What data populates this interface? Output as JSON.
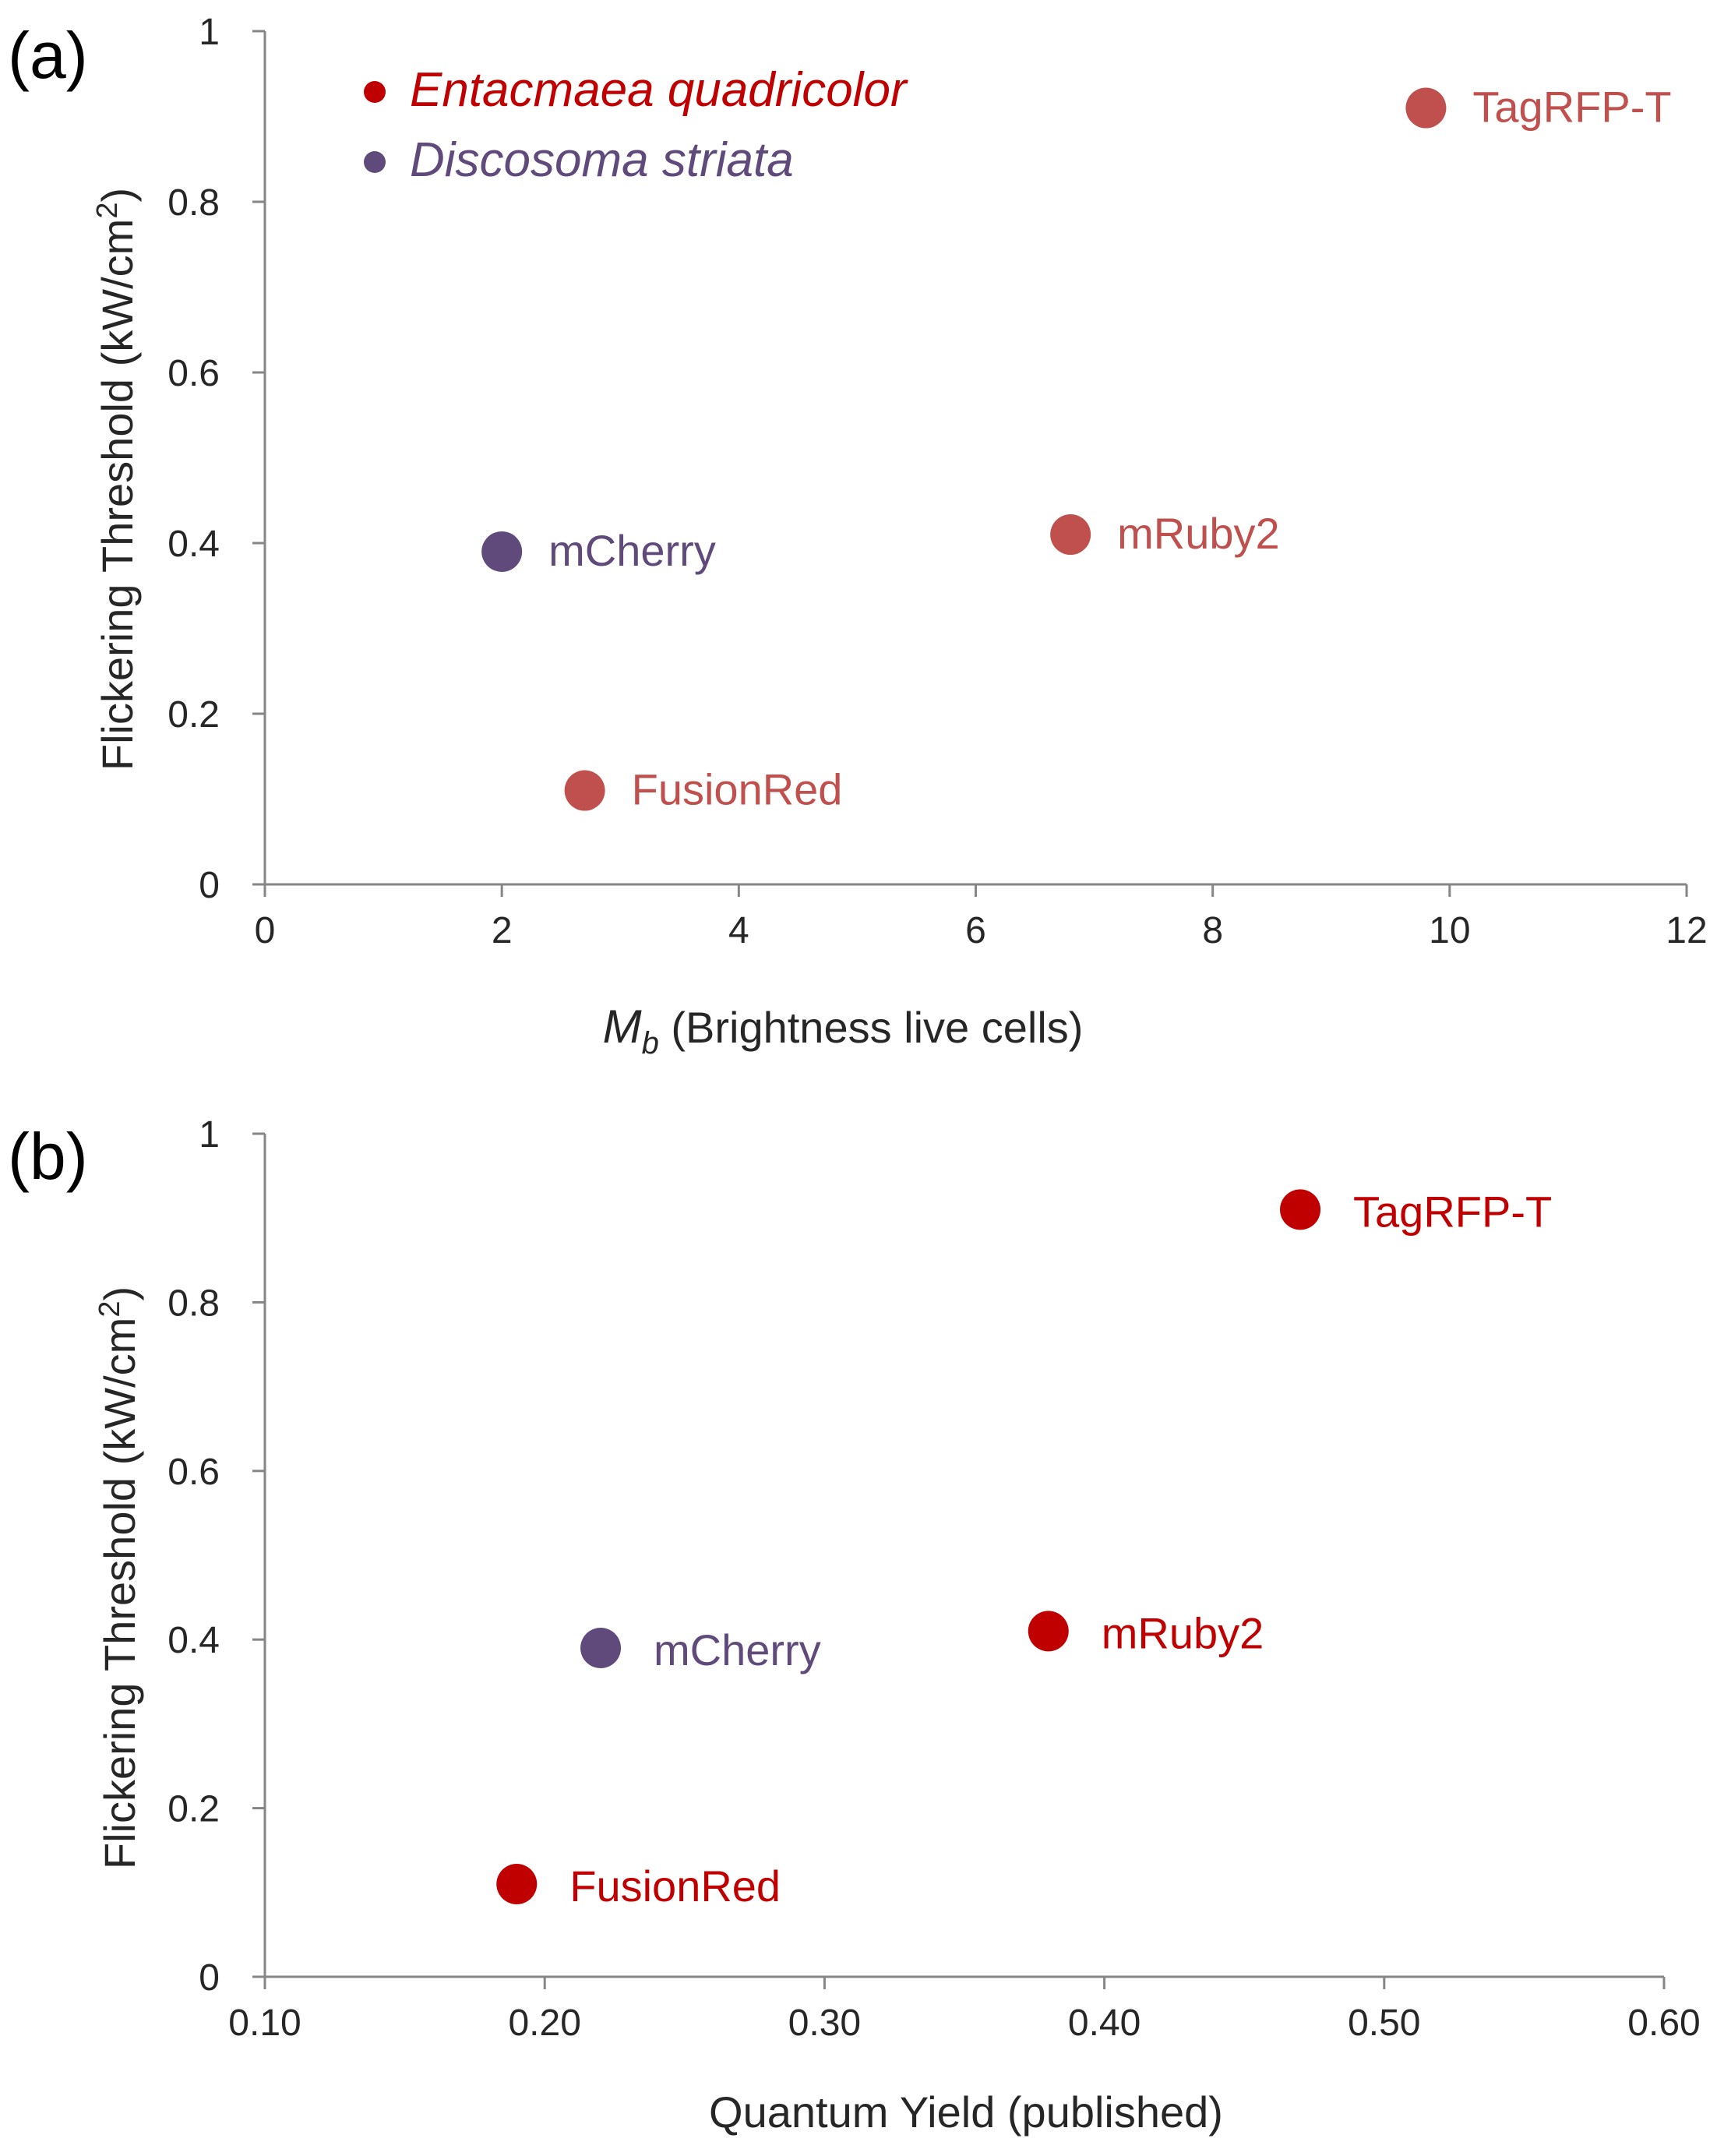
{
  "colors": {
    "axis": "#868686",
    "text": "#262626",
    "entacmaea_legend": "#c00000",
    "discosoma": "#604a7b",
    "entacmaea_panel_a": "#c0504d",
    "entacmaea_panel_b": "#c00000"
  },
  "chart_data": [
    {
      "type": "scatter",
      "panel_label": "(a)",
      "xlabel_italic": "M",
      "xlabel_subscript": "b",
      "xlabel_rest": " (Brightness live cells)",
      "ylabel_main": "Flickering Threshold  (kW/cm",
      "ylabel_sup": "2",
      "ylabel_close": ")",
      "xlim": [
        0,
        12
      ],
      "ylim": [
        0,
        1
      ],
      "x_ticks": [
        0,
        2,
        4,
        6,
        8,
        10,
        12
      ],
      "y_ticks": [
        0,
        0.2,
        0.4,
        0.6,
        0.8,
        1
      ],
      "x_tick_labels": [
        "0",
        "2",
        "4",
        "6",
        "8",
        "10",
        "12"
      ],
      "y_tick_labels": [
        "0",
        "0.2",
        "0.4",
        "0.6",
        "0.8",
        "1"
      ],
      "legend": [
        {
          "label": "Entacmaea quadricolor",
          "color": "#c00000",
          "style": "italic"
        },
        {
          "label": "Discosoma striata",
          "color": "#604a7b",
          "style": "italic"
        }
      ],
      "legend_position": "top-left",
      "points": [
        {
          "label": "TagRFP-T",
          "x": 9.8,
          "y": 0.91,
          "series": "Entacmaea quadricolor",
          "color": "#c0504d"
        },
        {
          "label": "mCherry",
          "x": 2.0,
          "y": 0.39,
          "series": "Discosoma striata",
          "color": "#604a7b"
        },
        {
          "label": "mRuby2",
          "x": 6.8,
          "y": 0.41,
          "series": "Entacmaea quadricolor",
          "color": "#c0504d"
        },
        {
          "label": "FusionRed",
          "x": 2.7,
          "y": 0.11,
          "series": "Entacmaea quadricolor",
          "color": "#c0504d"
        }
      ]
    },
    {
      "type": "scatter",
      "panel_label": "(b)",
      "xlabel": "Quantum Yield (published)",
      "ylabel_main": "Flickering Threshold  (kW/cm",
      "ylabel_sup": "2",
      "ylabel_close": ")",
      "xlim": [
        0.1,
        0.6
      ],
      "ylim": [
        0,
        1
      ],
      "x_ticks": [
        0.1,
        0.2,
        0.3,
        0.4,
        0.5,
        0.6
      ],
      "y_ticks": [
        0,
        0.2,
        0.4,
        0.6,
        0.8,
        1
      ],
      "x_tick_labels": [
        "0.10",
        "0.20",
        "0.30",
        "0.40",
        "0.50",
        "0.60"
      ],
      "y_tick_labels": [
        "0",
        "0.2",
        "0.4",
        "0.6",
        "0.8",
        "1"
      ],
      "points": [
        {
          "label": "TagRFP-T",
          "x": 0.47,
          "y": 0.91,
          "series": "Entacmaea quadricolor",
          "color": "#c00000"
        },
        {
          "label": "mCherry",
          "x": 0.22,
          "y": 0.39,
          "series": "Discosoma striata",
          "color": "#604a7b"
        },
        {
          "label": "mRuby2",
          "x": 0.38,
          "y": 0.41,
          "series": "Entacmaea quadricolor",
          "color": "#c00000"
        },
        {
          "label": "FusionRed",
          "x": 0.19,
          "y": 0.11,
          "series": "Entacmaea quadricolor",
          "color": "#c00000"
        }
      ]
    }
  ]
}
